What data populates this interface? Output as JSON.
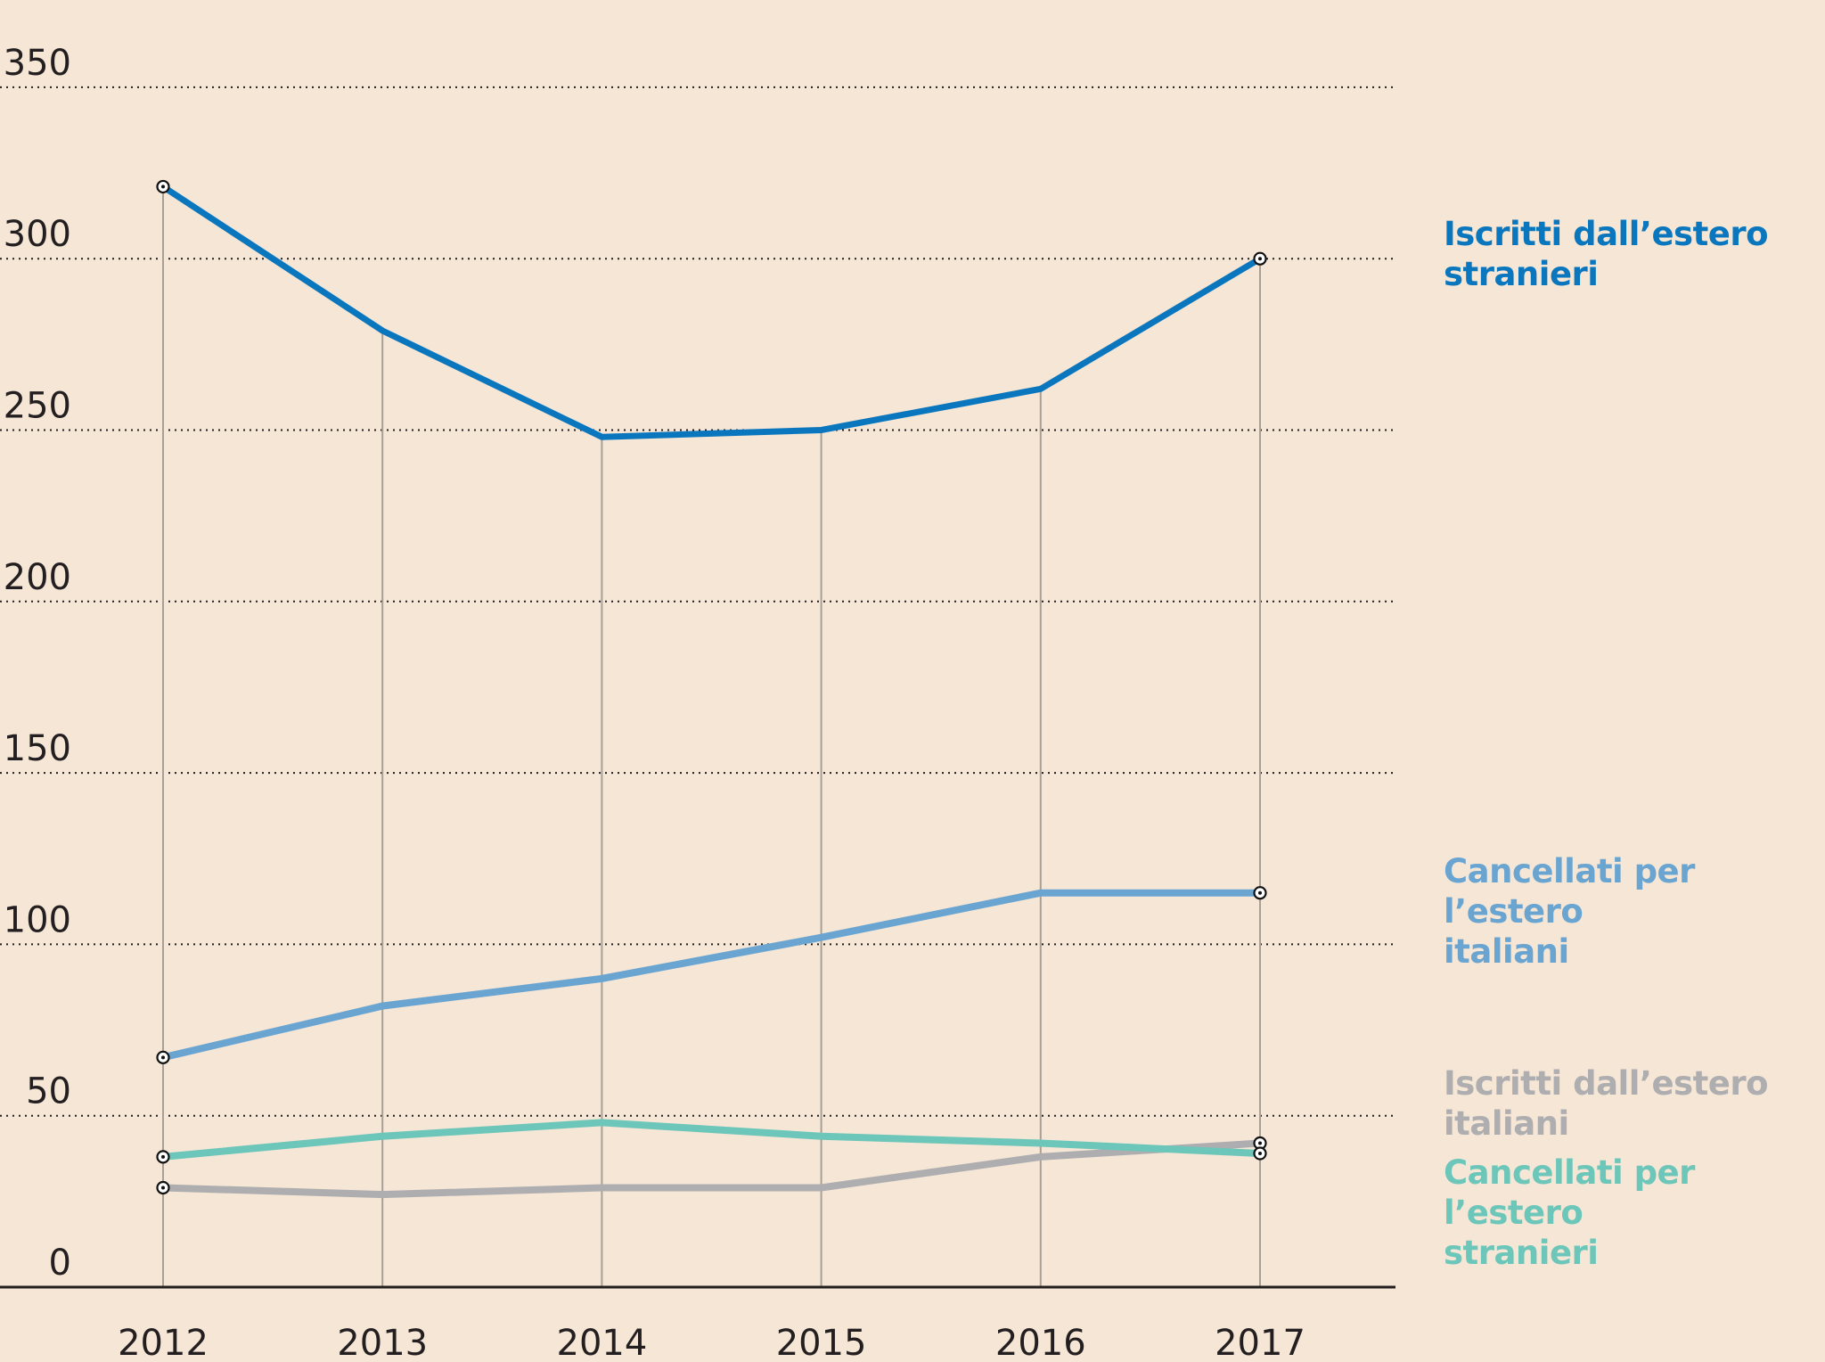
{
  "chart_data": {
    "type": "line",
    "title": "",
    "xlabel": "",
    "ylabel": "",
    "x": [
      "2012",
      "2013",
      "2014",
      "2015",
      "2016",
      "2017"
    ],
    "ylim": [
      0,
      350
    ],
    "yticks": [
      0,
      50,
      100,
      150,
      200,
      250,
      300,
      350
    ],
    "grid": "horizontal-dotted",
    "legend": "right, labels inline",
    "series": [
      {
        "name": "Iscritti dall’estero stranieri",
        "line1": "Iscritti dall’estero",
        "line2": "stranieri",
        "color": "#0a76bd",
        "values": [
          321,
          279,
          248,
          250,
          262,
          300
        ]
      },
      {
        "name": "Cancellati per l’estero italiani",
        "line1": "Cancellati per l’estero",
        "line2": "italiani",
        "color": "#6aa5d2",
        "values": [
          67,
          82,
          90,
          102,
          115,
          115
        ]
      },
      {
        "name": "Iscritti dall’estero italiani",
        "line1": "Iscritti dall’estero",
        "line2": "italiani",
        "color": "#aeaeb0",
        "values": [
          29,
          27,
          29,
          29,
          38,
          42
        ]
      },
      {
        "name": "Cancellati per l’estero stranieri",
        "line1": "Cancellati per l’estero",
        "line2": "stranieri",
        "color": "#6cc6b9",
        "values": [
          38,
          44,
          48,
          44,
          42,
          39
        ]
      }
    ]
  }
}
